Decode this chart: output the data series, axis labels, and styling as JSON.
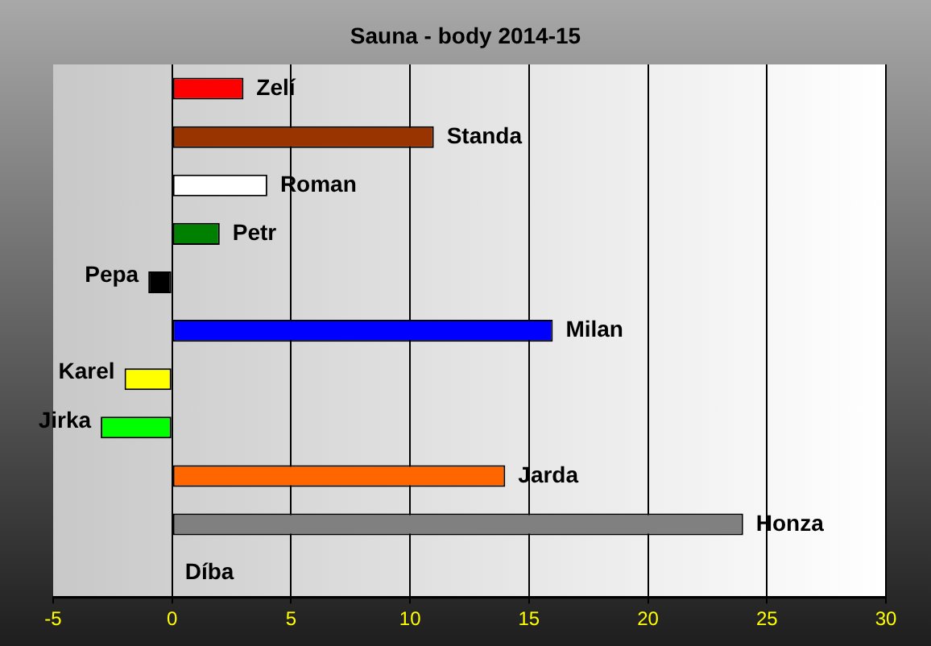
{
  "chart_data": {
    "type": "bar",
    "orientation": "horizontal",
    "title": "Sauna - body 2014-15",
    "categories": [
      "Zelí",
      "Standa",
      "Roman",
      "Petr",
      "Pepa",
      "Milan",
      "Karel",
      "Jirka",
      "Jarda",
      "Honza",
      "Díba"
    ],
    "values": [
      3,
      11,
      4,
      2,
      -1,
      16,
      -2,
      -3,
      14,
      24,
      0
    ],
    "colors": [
      "#ff0000",
      "#993300",
      "#ffffff",
      "#008000",
      "#000000",
      "#0000ff",
      "#ffff00",
      "#00ff00",
      "#ff6600",
      "#808080",
      "#c0c0c0"
    ],
    "xlim": [
      -5,
      30
    ],
    "xticks": [
      -5,
      0,
      5,
      10,
      15,
      20,
      25,
      30
    ],
    "grid": "x",
    "tick_labels": "x",
    "legend": false
  }
}
